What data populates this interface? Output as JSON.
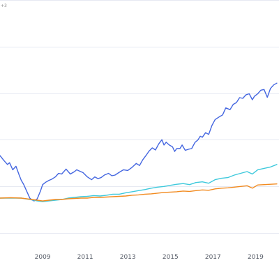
{
  "corner_label": "+3",
  "colors": {
    "series_blue": "#4466e0",
    "series_cyan": "#3ec9dc",
    "series_orange": "#f28a1e",
    "grid": "#e6e9f2",
    "tick_text": "#555b66"
  },
  "chart_data": {
    "type": "line",
    "title": "",
    "xlabel": "",
    "ylabel": "",
    "xlim": [
      2007.0,
      2020.1
    ],
    "ylim": [
      0.3,
      1.0
    ],
    "grid": "horizontal",
    "x_tick_labels": [
      "2009",
      "2011",
      "2013",
      "2015",
      "2017",
      "2019"
    ],
    "x_tick_values": [
      2009,
      2011,
      2013,
      2015,
      2017,
      2019
    ],
    "series": [
      {
        "color": "#4466e0",
        "x": [
          2007.0,
          2007.2,
          2007.35,
          2007.45,
          2007.6,
          2007.75,
          2007.9,
          2008.0,
          2008.1,
          2008.25,
          2008.4,
          2008.5,
          2008.6,
          2008.75,
          2008.9,
          2009.0,
          2009.15,
          2009.3,
          2009.45,
          2009.6,
          2009.75,
          2009.9,
          2010.1,
          2010.3,
          2010.5,
          2010.6,
          2010.75,
          2010.9,
          2011.1,
          2011.3,
          2011.45,
          2011.6,
          2011.75,
          2011.9,
          2012.1,
          2012.25,
          2012.4,
          2012.6,
          2012.8,
          2013.0,
          2013.2,
          2013.4,
          2013.55,
          2013.7,
          2013.85,
          2014.0,
          2014.15,
          2014.3,
          2014.45,
          2014.6,
          2014.7,
          2014.8,
          2014.95,
          2015.1,
          2015.2,
          2015.3,
          2015.45,
          2015.55,
          2015.7,
          2015.85,
          2016.0,
          2016.15,
          2016.3,
          2016.4,
          2016.5,
          2016.65,
          2016.8,
          2016.95,
          2017.1,
          2017.3,
          2017.45,
          2017.6,
          2017.8,
          2017.95,
          2018.1,
          2018.25,
          2018.4,
          2018.55,
          2018.7,
          2018.85,
          2018.95,
          2019.1,
          2019.25,
          2019.4,
          2019.55,
          2019.7,
          2019.85,
          2020.0
        ],
        "values": [
          0.56,
          0.545,
          0.535,
          0.54,
          0.52,
          0.53,
          0.505,
          0.49,
          0.48,
          0.46,
          0.44,
          0.435,
          0.432,
          0.438,
          0.46,
          0.478,
          0.485,
          0.49,
          0.494,
          0.5,
          0.51,
          0.508,
          0.522,
          0.508,
          0.515,
          0.52,
          0.516,
          0.512,
          0.5,
          0.492,
          0.5,
          0.495,
          0.498,
          0.505,
          0.51,
          0.503,
          0.505,
          0.513,
          0.52,
          0.518,
          0.527,
          0.538,
          0.532,
          0.548,
          0.56,
          0.573,
          0.582,
          0.576,
          0.593,
          0.605,
          0.59,
          0.598,
          0.59,
          0.585,
          0.572,
          0.58,
          0.58,
          0.59,
          0.575,
          0.578,
          0.58,
          0.597,
          0.605,
          0.615,
          0.612,
          0.625,
          0.62,
          0.645,
          0.662,
          0.67,
          0.675,
          0.695,
          0.69,
          0.705,
          0.71,
          0.724,
          0.722,
          0.732,
          0.735,
          0.718,
          0.728,
          0.735,
          0.745,
          0.747,
          0.725,
          0.75,
          0.76,
          0.765
        ]
      },
      {
        "color": "#3ec9dc",
        "x": [
          2007.0,
          2007.5,
          2008.0,
          2008.5,
          2008.75,
          2009.0,
          2009.3,
          2009.6,
          2009.9,
          2010.2,
          2010.5,
          2010.8,
          2011.1,
          2011.4,
          2011.7,
          2012.0,
          2012.3,
          2012.6,
          2012.9,
          2013.2,
          2013.5,
          2013.8,
          2014.1,
          2014.4,
          2014.7,
          2015.0,
          2015.3,
          2015.6,
          2015.9,
          2016.2,
          2016.5,
          2016.8,
          2017.1,
          2017.4,
          2017.7,
          2018.0,
          2018.3,
          2018.6,
          2018.85,
          2019.1,
          2019.4,
          2019.7,
          2020.0
        ],
        "values": [
          0.44,
          0.44,
          0.44,
          0.435,
          0.432,
          0.43,
          0.432,
          0.434,
          0.436,
          0.44,
          0.442,
          0.444,
          0.445,
          0.447,
          0.446,
          0.448,
          0.451,
          0.451,
          0.455,
          0.458,
          0.461,
          0.464,
          0.468,
          0.471,
          0.473,
          0.476,
          0.479,
          0.481,
          0.478,
          0.484,
          0.486,
          0.482,
          0.492,
          0.496,
          0.498,
          0.505,
          0.51,
          0.515,
          0.508,
          0.52,
          0.524,
          0.528,
          0.535
        ]
      },
      {
        "color": "#f28a1e",
        "x": [
          2007.0,
          2007.5,
          2008.0,
          2008.5,
          2008.75,
          2009.0,
          2009.3,
          2009.6,
          2009.9,
          2010.2,
          2010.5,
          2010.8,
          2011.1,
          2011.4,
          2011.7,
          2012.0,
          2012.3,
          2012.6,
          2012.9,
          2013.2,
          2013.5,
          2013.8,
          2014.1,
          2014.4,
          2014.7,
          2015.0,
          2015.3,
          2015.6,
          2015.9,
          2016.2,
          2016.5,
          2016.8,
          2017.1,
          2017.4,
          2017.7,
          2018.0,
          2018.3,
          2018.6,
          2018.85,
          2019.1,
          2019.4,
          2019.7,
          2020.0
        ],
        "values": [
          0.44,
          0.441,
          0.44,
          0.436,
          0.434,
          0.432,
          0.434,
          0.436,
          0.436,
          0.438,
          0.439,
          0.44,
          0.44,
          0.442,
          0.442,
          0.443,
          0.444,
          0.445,
          0.446,
          0.448,
          0.449,
          0.451,
          0.452,
          0.454,
          0.456,
          0.457,
          0.458,
          0.46,
          0.459,
          0.461,
          0.463,
          0.462,
          0.466,
          0.468,
          0.469,
          0.471,
          0.473,
          0.475,
          0.468,
          0.477,
          0.478,
          0.479,
          0.48
        ]
      }
    ]
  }
}
